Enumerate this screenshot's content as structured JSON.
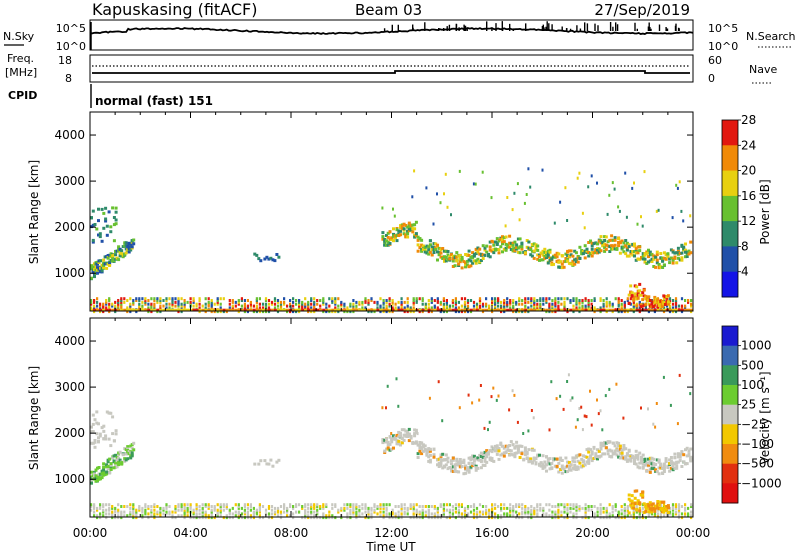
{
  "header": {
    "station": "Kapuskasing (fitACF)",
    "beam": "Beam 03",
    "date": "27/Sep/2019"
  },
  "noise_panel": {
    "left_label": "N.Sky",
    "right_label": "N.Search",
    "left_ticks": [
      "10^5",
      "10^0"
    ],
    "right_ticks": [
      "10^5",
      "10^0"
    ]
  },
  "freq_panel": {
    "left_label_1": "Freq.",
    "left_label_2": "[MHz]",
    "right_label": "Nave",
    "left_ticks": [
      "18",
      "8"
    ],
    "right_ticks": [
      "60",
      "0"
    ]
  },
  "cpid": {
    "label": "CPID",
    "mode": "normal (fast) 151"
  },
  "chart_data": [
    {
      "type": "heatmap",
      "name": "power-panel",
      "quantity": "Power",
      "ylabel": "Slant Range [km]",
      "xlabel": "Time UT",
      "x_ticks": [
        "00:00",
        "04:00",
        "08:00",
        "12:00",
        "16:00",
        "20:00",
        "00:00"
      ],
      "xlim_hours": [
        0,
        24
      ],
      "y_ticks": [
        1000,
        2000,
        3000,
        4000
      ],
      "ylim_km": [
        180,
        4500
      ],
      "colorbar": {
        "label": "Power [dB]",
        "ticks": [
          "4",
          "8",
          "12",
          "16",
          "20",
          "24",
          "28"
        ],
        "colors": [
          "#1414e6",
          "#2050a8",
          "#2e8a6a",
          "#68c030",
          "#e8d010",
          "#f08a08",
          "#e21810"
        ]
      },
      "echo_regions": [
        {
          "t0": 0.0,
          "t1": 1.7,
          "r0": 900,
          "r1": 1550,
          "level": "mixed"
        },
        {
          "t0": 0.0,
          "t1": 1.0,
          "r0": 1700,
          "r1": 2600,
          "level": "mixed"
        },
        {
          "t0": 6.5,
          "t1": 7.5,
          "r0": 1300,
          "r1": 1450,
          "level": "low"
        },
        {
          "t0": 11.5,
          "t1": 23.9,
          "r0": 1200,
          "r1": 2200,
          "level": "mixed"
        },
        {
          "t0": 21.5,
          "t1": 23.0,
          "r0": 200,
          "r1": 600,
          "level": "high"
        },
        {
          "t0": 0.0,
          "t1": 24.0,
          "r0": 200,
          "r1": 500,
          "level": "near-range"
        }
      ]
    },
    {
      "type": "heatmap",
      "name": "velocity-panel",
      "quantity": "Velocity",
      "ylabel": "Slant Range [km]",
      "xlabel": "Time UT",
      "x_ticks": [
        "00:00",
        "04:00",
        "08:00",
        "12:00",
        "16:00",
        "20:00",
        "00:00"
      ],
      "xlim_hours": [
        0,
        24
      ],
      "y_ticks": [
        1000,
        2000,
        3000,
        4000
      ],
      "ylim_km": [
        180,
        4500
      ],
      "colorbar": {
        "label": "Velocity [m s⁻¹]",
        "ticks": [
          "1000",
          "500",
          "100",
          "25",
          "−25",
          "−100",
          "−500",
          "−1000"
        ],
        "colors": [
          "#1a1ad0",
          "#3a6ab0",
          "#3a9a5a",
          "#6ccc30",
          "#c8c8c0",
          "#f2c800",
          "#f08c10",
          "#e23010",
          "#e01010"
        ]
      }
    }
  ],
  "time_axis": {
    "ticks": [
      "00:00",
      "04:00",
      "08:00",
      "12:00",
      "16:00",
      "20:00",
      "00:00"
    ],
    "label": "Time UT"
  }
}
